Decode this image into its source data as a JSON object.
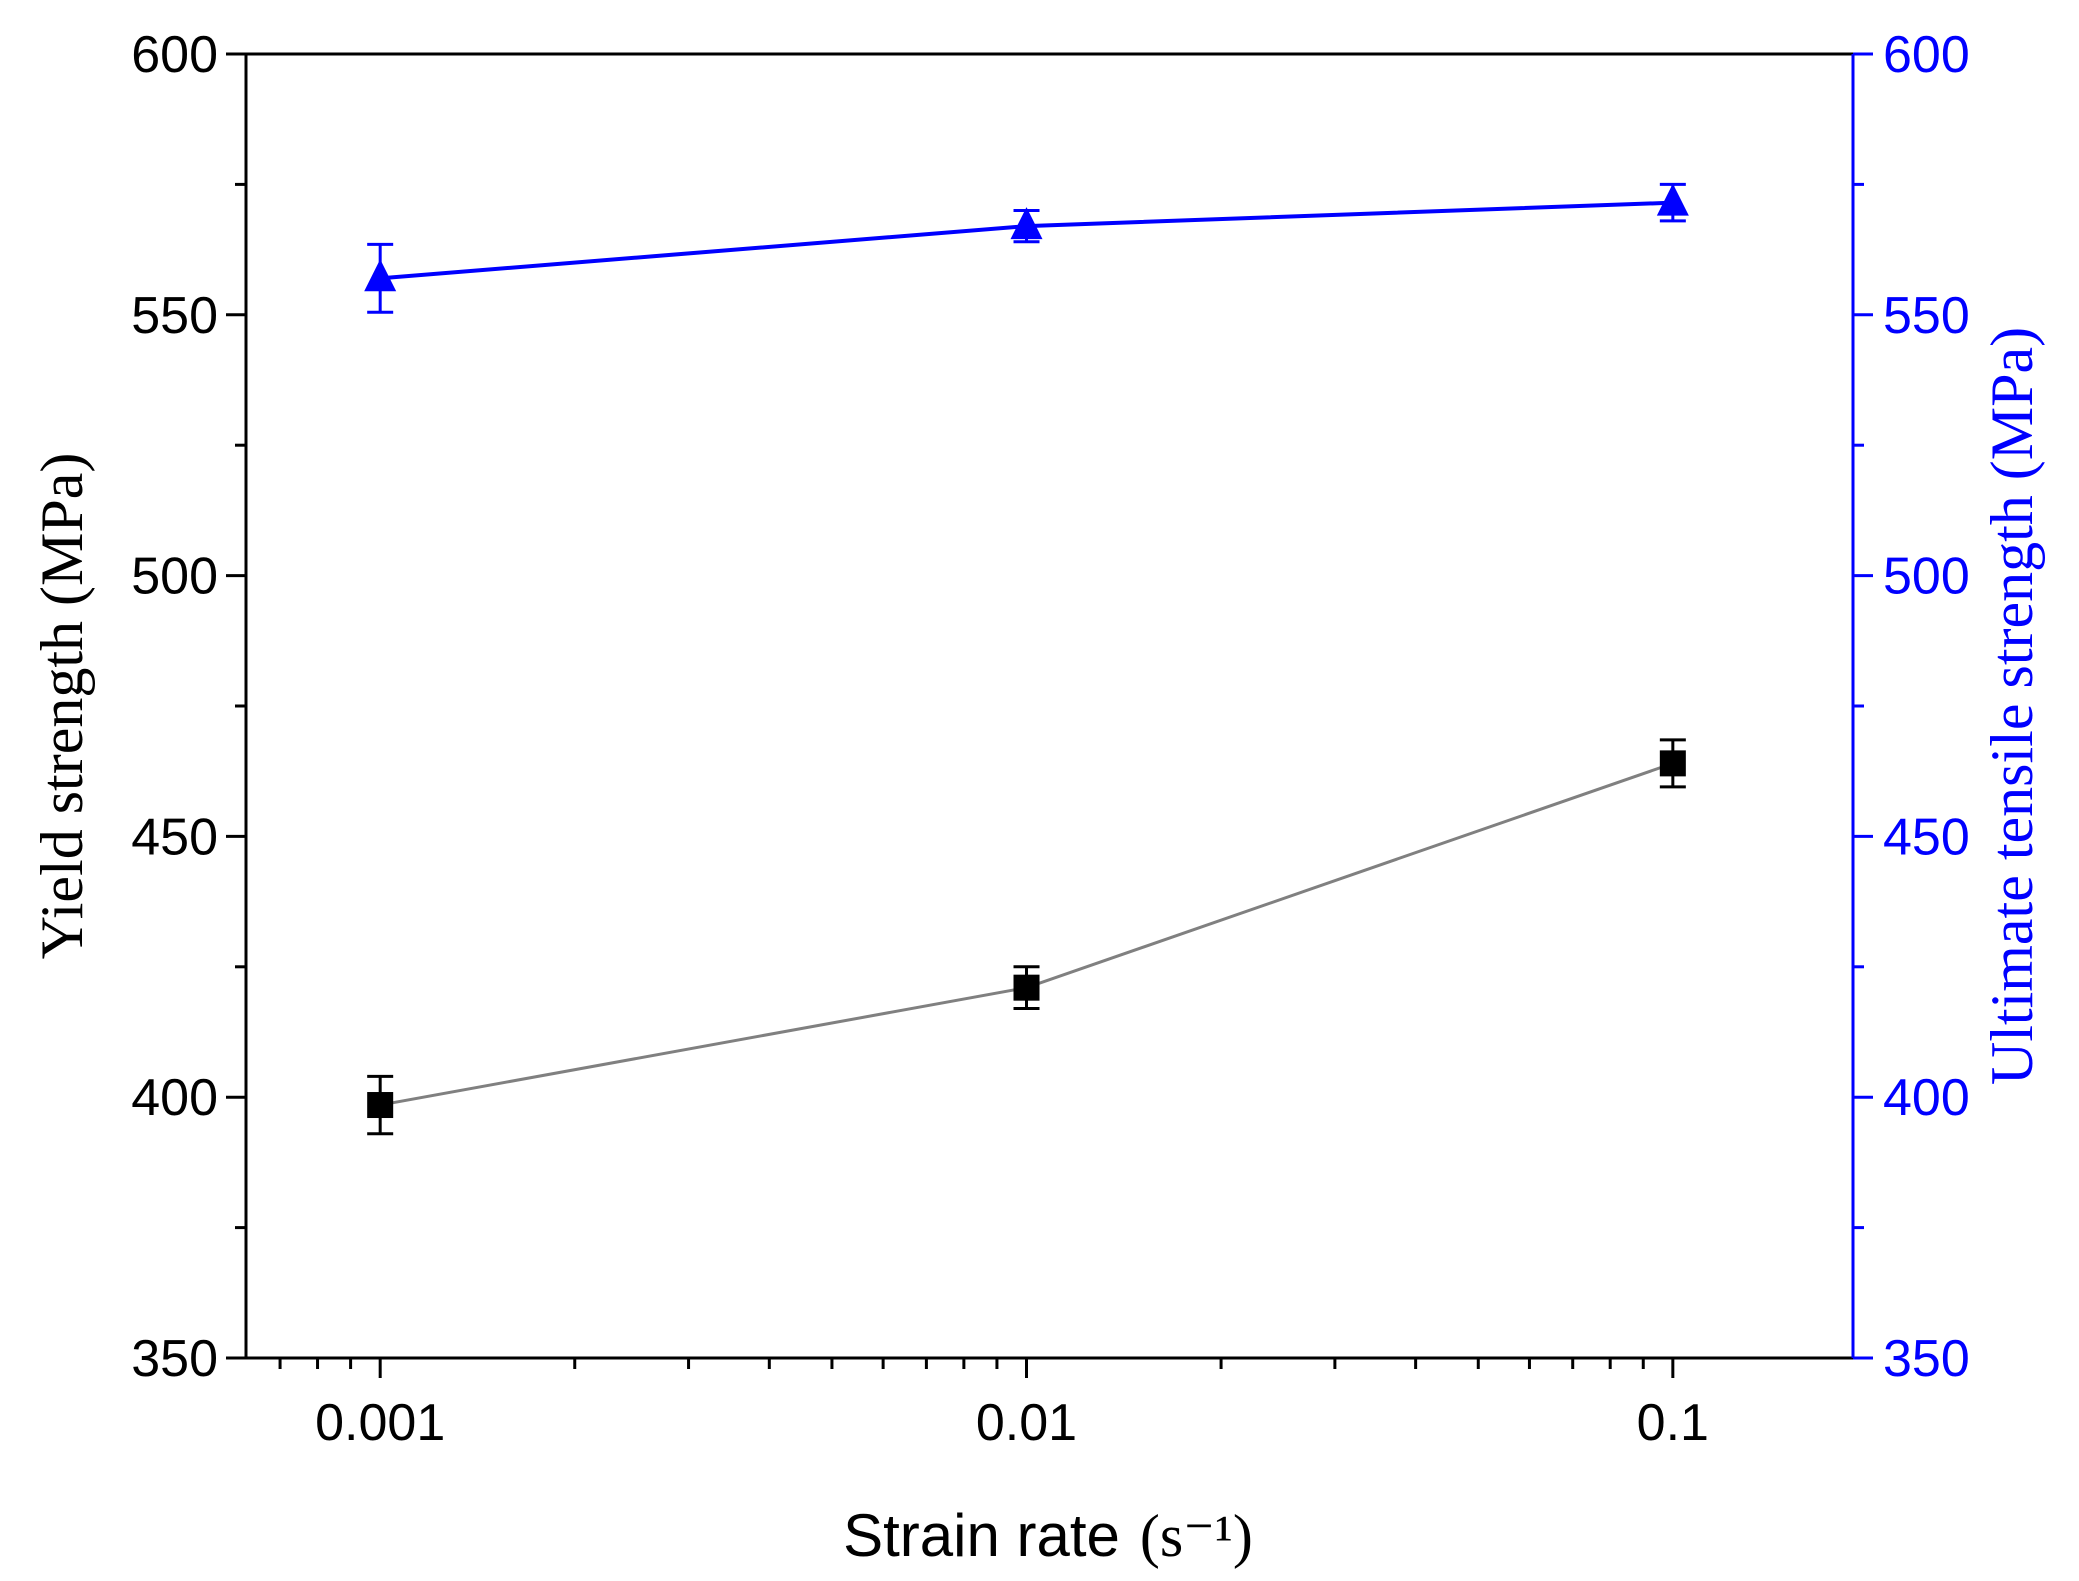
{
  "chart_data": {
    "type": "line",
    "x_scale": "log",
    "xlabel": "Strain rate (s⁻¹)",
    "xlabel_main": "Strain rate",
    "xlabel_unit": "(s⁻¹)",
    "ylabel_left": "Yield strength (MPa)",
    "ylabel_right": "Ultimate tensile strength (MPa)",
    "xlim": [
      0.00062,
      0.19
    ],
    "ylim": [
      350,
      600
    ],
    "x_ticks": [
      {
        "value": 0.001,
        "label": "0.001"
      },
      {
        "value": 0.01,
        "label": "0.01"
      },
      {
        "value": 0.1,
        "label": "0.1"
      }
    ],
    "y_ticks_left": [
      "350",
      "400",
      "450",
      "500",
      "550",
      "600"
    ],
    "y_ticks_right": [
      "350",
      "400",
      "450",
      "500",
      "550",
      "600"
    ],
    "left_axis_color": "#000000",
    "right_axis_color": "#0000ff",
    "series": [
      {
        "name": "Yield strength",
        "axis": "left",
        "marker": "square",
        "marker_color": "#000000",
        "line_color": "#808080",
        "x": [
          0.001,
          0.01,
          0.1
        ],
        "y": [
          398.5,
          421,
          464
        ],
        "error": [
          5.5,
          4,
          4.5
        ]
      },
      {
        "name": "Ultimate tensile strength",
        "axis": "right",
        "marker": "triangle",
        "marker_color": "#0000ff",
        "line_color": "#0000ff",
        "x": [
          0.001,
          0.01,
          0.1
        ],
        "y": [
          557,
          567,
          571.5
        ],
        "error": [
          6.5,
          3,
          3.5
        ]
      }
    ]
  }
}
